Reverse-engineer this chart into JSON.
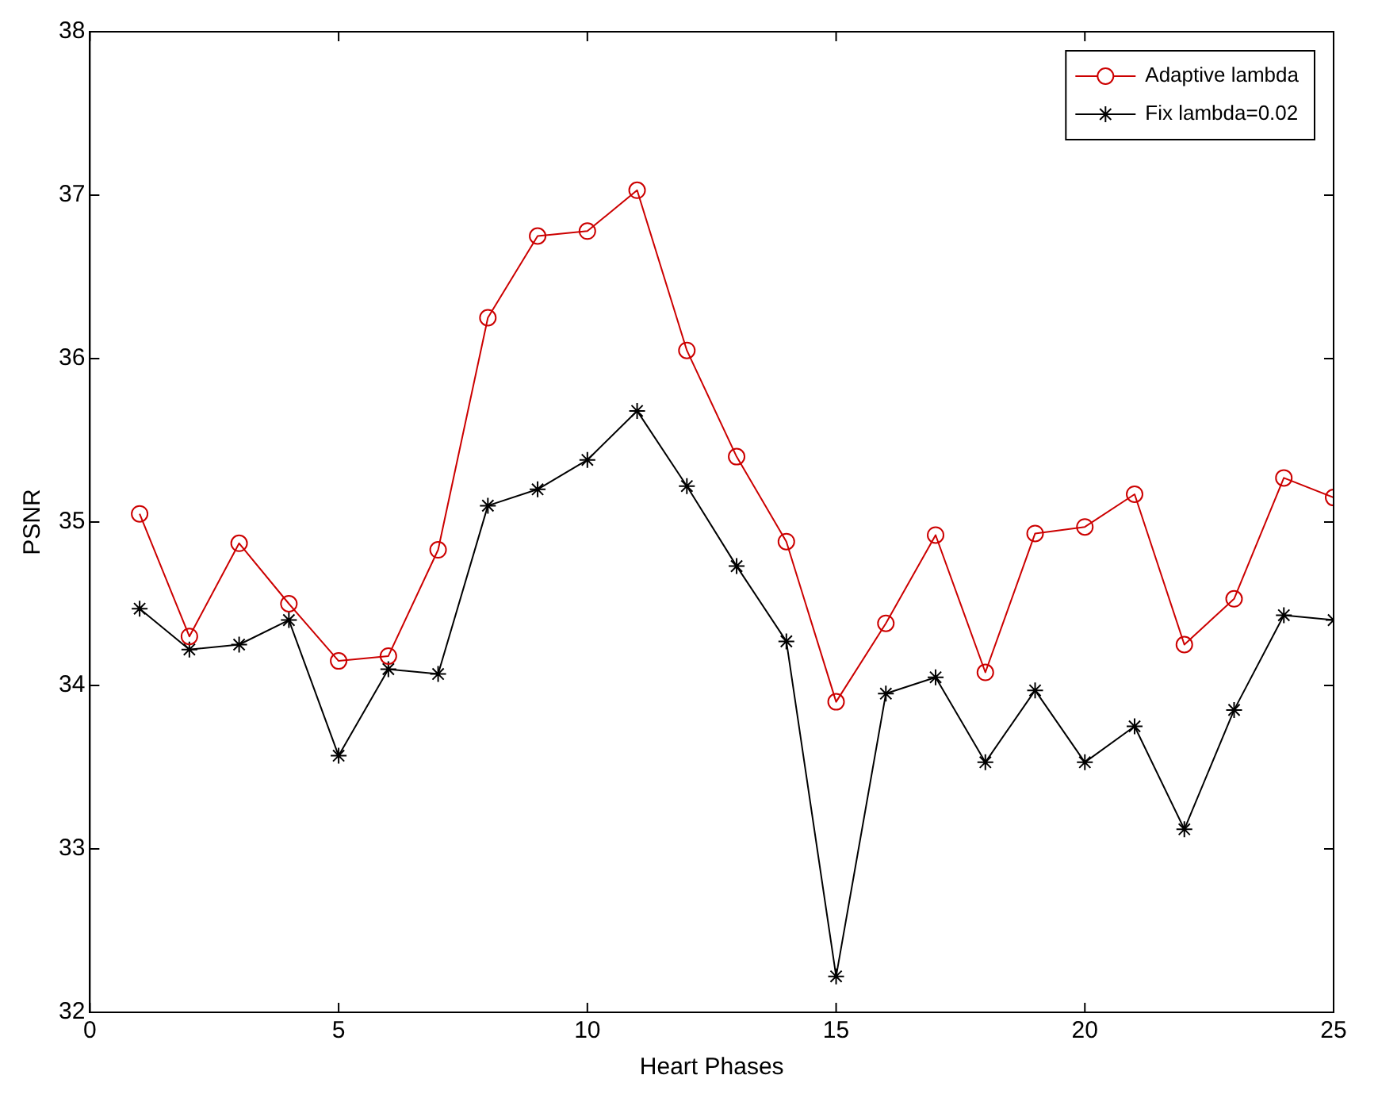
{
  "chart_data": {
    "type": "line",
    "xlabel": "Heart Phases",
    "ylabel": "PSNR",
    "x": [
      1,
      2,
      3,
      4,
      5,
      6,
      7,
      8,
      9,
      10,
      11,
      12,
      13,
      14,
      15,
      16,
      17,
      18,
      19,
      20,
      21,
      22,
      23,
      24,
      25
    ],
    "series": [
      {
        "name": "Adaptive lambda",
        "color": "#cc0000",
        "marker": "circle",
        "values": [
          35.05,
          34.3,
          34.87,
          34.5,
          34.15,
          34.18,
          34.83,
          36.25,
          36.75,
          36.78,
          37.03,
          36.05,
          35.4,
          34.88,
          33.9,
          34.38,
          34.92,
          34.08,
          34.93,
          34.97,
          35.17,
          34.25,
          34.53,
          35.27,
          35.15
        ]
      },
      {
        "name": "Fix lambda=0.02",
        "color": "#000000",
        "marker": "cross",
        "values": [
          34.47,
          34.22,
          34.25,
          34.4,
          33.57,
          34.1,
          34.07,
          35.1,
          35.2,
          35.38,
          35.68,
          35.22,
          34.73,
          34.27,
          32.22,
          33.95,
          34.05,
          33.53,
          33.97,
          33.53,
          33.75,
          33.12,
          33.85,
          34.43,
          34.4
        ]
      }
    ],
    "xlim": [
      0,
      25
    ],
    "xticks": [
      0,
      5,
      10,
      15,
      20,
      25
    ],
    "ylim": [
      32,
      38
    ],
    "yticks": [
      32,
      33,
      34,
      35,
      36,
      37,
      38
    ],
    "legend": "top right",
    "line_style": "solid"
  }
}
